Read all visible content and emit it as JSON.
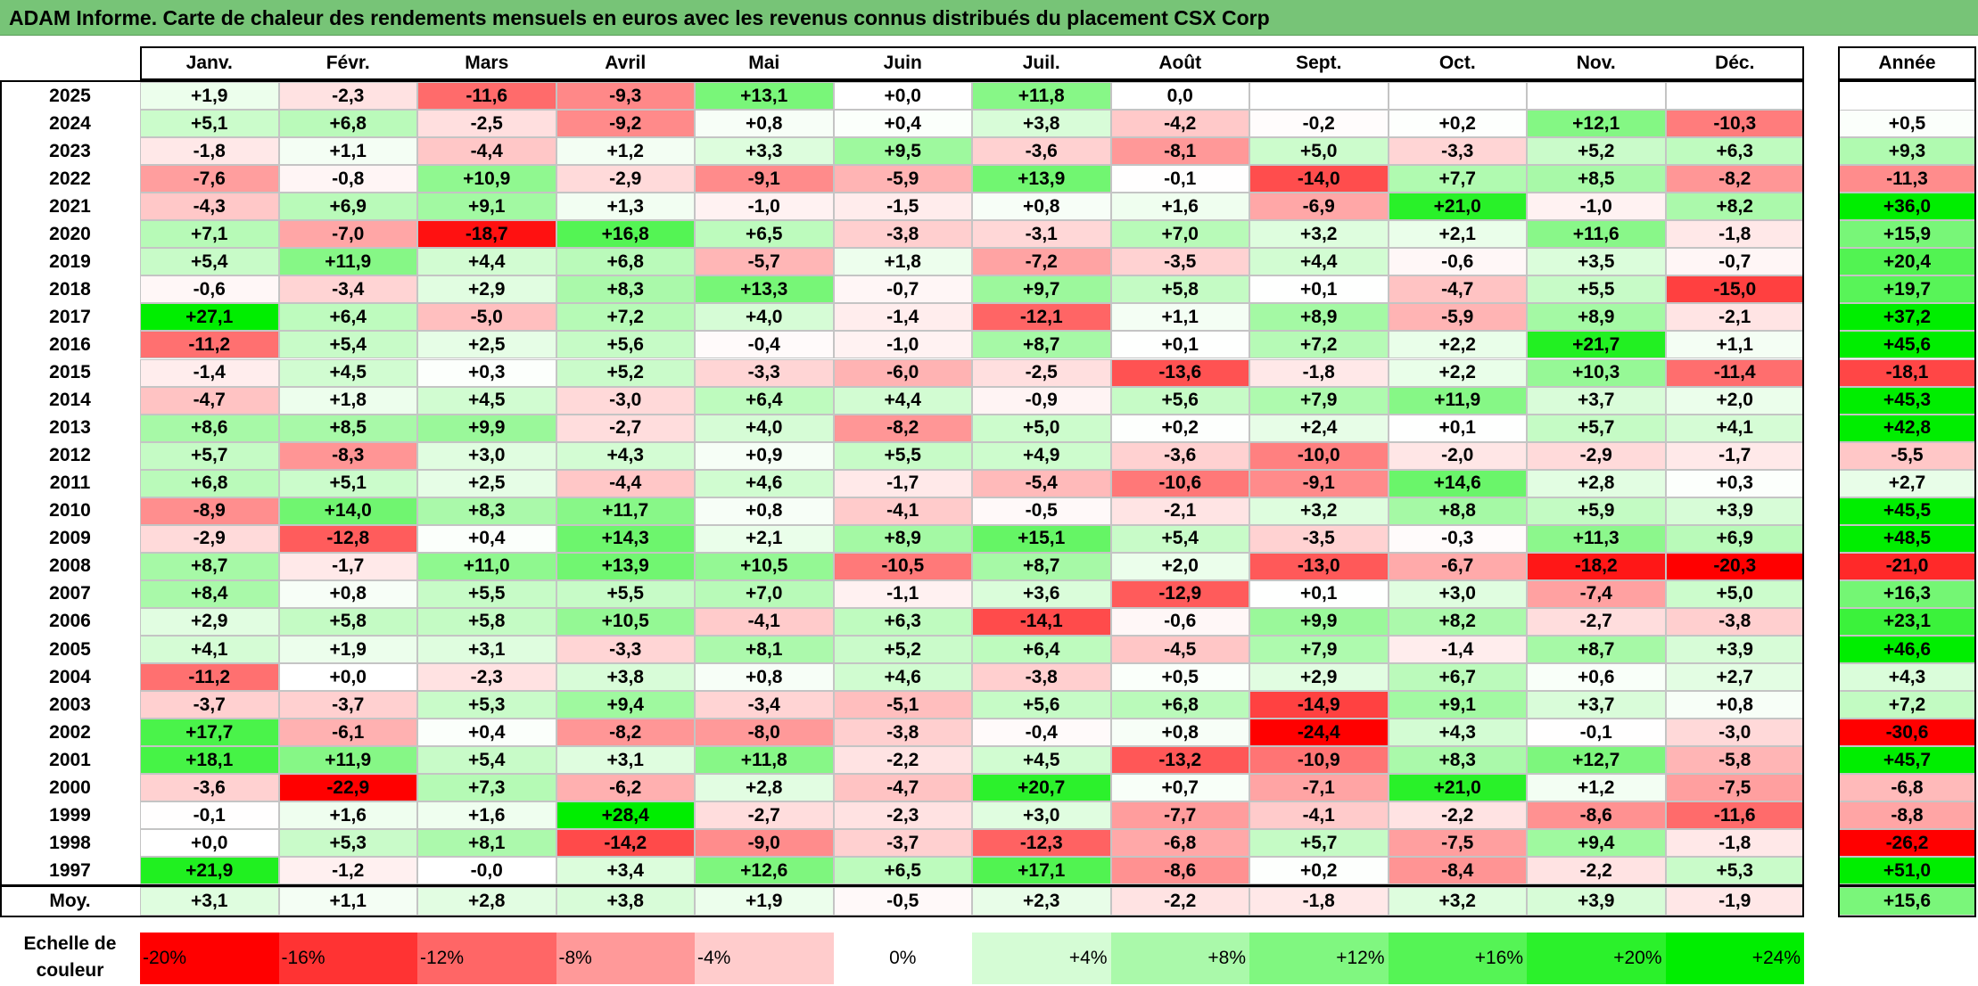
{
  "title": "ADAM Informe. Carte de chaleur des rendements mensuels en euros avec les revenus connus distribués du placement CSX Corp",
  "chart_data": {
    "type": "heatmap",
    "months": [
      "Janv.",
      "Févr.",
      "Mars",
      "Avril",
      "Mai",
      "Juin",
      "Juil.",
      "Août",
      "Sept.",
      "Oct.",
      "Nov.",
      "Déc."
    ],
    "year_col_header": "Année",
    "rows": [
      {
        "label": "2025",
        "values": [
          "+1,9",
          "-2,3",
          "-11,6",
          "-9,3",
          "+13,1",
          "+0,0",
          "+11,8",
          "0,0",
          "",
          "",
          "",
          ""
        ],
        "annual": ""
      },
      {
        "label": "2024",
        "values": [
          "+5,1",
          "+6,8",
          "-2,5",
          "-9,2",
          "+0,8",
          "+0,4",
          "+3,8",
          "-4,2",
          "-0,2",
          "+0,2",
          "+12,1",
          "-10,3"
        ],
        "annual": "+0,5"
      },
      {
        "label": "2023",
        "values": [
          "-1,8",
          "+1,1",
          "-4,4",
          "+1,2",
          "+3,3",
          "+9,5",
          "-3,6",
          "-8,1",
          "+5,0",
          "-3,3",
          "+5,2",
          "+6,3"
        ],
        "annual": "+9,3"
      },
      {
        "label": "2022",
        "values": [
          "-7,6",
          "-0,8",
          "+10,9",
          "-2,9",
          "-9,1",
          "-5,9",
          "+13,9",
          "-0,1",
          "-14,0",
          "+7,7",
          "+8,5",
          "-8,2"
        ],
        "annual": "-11,3"
      },
      {
        "label": "2021",
        "values": [
          "-4,3",
          "+6,9",
          "+9,1",
          "+1,3",
          "-1,0",
          "-1,5",
          "+0,8",
          "+1,6",
          "-6,9",
          "+21,0",
          "-1,0",
          "+8,2"
        ],
        "annual": "+36,0"
      },
      {
        "label": "2020",
        "values": [
          "+7,1",
          "-7,0",
          "-18,7",
          "+16,8",
          "+6,5",
          "-3,8",
          "-3,1",
          "+7,0",
          "+3,2",
          "+2,1",
          "+11,6",
          "-1,8"
        ],
        "annual": "+15,9"
      },
      {
        "label": "2019",
        "values": [
          "+5,4",
          "+11,9",
          "+4,4",
          "+6,8",
          "-5,7",
          "+1,8",
          "-7,2",
          "-3,5",
          "+4,4",
          "-0,6",
          "+3,5",
          "-0,7"
        ],
        "annual": "+20,4"
      },
      {
        "label": "2018",
        "values": [
          "-0,6",
          "-3,4",
          "+2,9",
          "+8,3",
          "+13,3",
          "-0,7",
          "+9,7",
          "+5,8",
          "+0,1",
          "-4,7",
          "+5,5",
          "-15,0"
        ],
        "annual": "+19,7"
      },
      {
        "label": "2017",
        "values": [
          "+27,1",
          "+6,4",
          "-5,0",
          "+7,2",
          "+4,0",
          "-1,4",
          "-12,1",
          "+1,1",
          "+8,9",
          "-5,9",
          "+8,9",
          "-2,1"
        ],
        "annual": "+37,2"
      },
      {
        "label": "2016",
        "values": [
          "-11,2",
          "+5,4",
          "+2,5",
          "+5,6",
          "-0,4",
          "-1,0",
          "+8,7",
          "+0,1",
          "+7,2",
          "+2,2",
          "+21,7",
          "+1,1"
        ],
        "annual": "+45,6"
      },
      {
        "label": "2015",
        "values": [
          "-1,4",
          "+4,5",
          "+0,3",
          "+5,2",
          "-3,3",
          "-6,0",
          "-2,5",
          "-13,6",
          "-1,8",
          "+2,2",
          "+10,3",
          "-11,4"
        ],
        "annual": "-18,1"
      },
      {
        "label": "2014",
        "values": [
          "-4,7",
          "+1,8",
          "+4,5",
          "-3,0",
          "+6,4",
          "+4,4",
          "-0,9",
          "+5,6",
          "+7,9",
          "+11,9",
          "+3,7",
          "+2,0"
        ],
        "annual": "+45,3"
      },
      {
        "label": "2013",
        "values": [
          "+8,6",
          "+8,5",
          "+9,9",
          "-2,7",
          "+4,0",
          "-8,2",
          "+5,0",
          "+0,2",
          "+2,4",
          "+0,1",
          "+5,7",
          "+4,1"
        ],
        "annual": "+42,8"
      },
      {
        "label": "2012",
        "values": [
          "+5,7",
          "-8,3",
          "+3,0",
          "+4,3",
          "+0,9",
          "+5,5",
          "+4,9",
          "-3,6",
          "-10,0",
          "-2,0",
          "-2,9",
          "-1,7"
        ],
        "annual": "-5,5"
      },
      {
        "label": "2011",
        "values": [
          "+6,8",
          "+5,1",
          "+2,5",
          "-4,4",
          "+4,6",
          "-1,7",
          "-5,4",
          "-10,6",
          "-9,1",
          "+14,6",
          "+2,8",
          "+0,3"
        ],
        "annual": "+2,7"
      },
      {
        "label": "2010",
        "values": [
          "-8,9",
          "+14,0",
          "+8,3",
          "+11,7",
          "+0,8",
          "-4,1",
          "-0,5",
          "-2,1",
          "+3,2",
          "+8,8",
          "+5,9",
          "+3,9"
        ],
        "annual": "+45,5"
      },
      {
        "label": "2009",
        "values": [
          "-2,9",
          "-12,8",
          "+0,4",
          "+14,3",
          "+2,1",
          "+8,9",
          "+15,1",
          "+5,4",
          "-3,5",
          "-0,3",
          "+11,3",
          "+6,9"
        ],
        "annual": "+48,5"
      },
      {
        "label": "2008",
        "values": [
          "+8,7",
          "-1,7",
          "+11,0",
          "+13,9",
          "+10,5",
          "-10,5",
          "+8,7",
          "+2,0",
          "-13,0",
          "-6,7",
          "-18,2",
          "-20,3"
        ],
        "annual": "-21,0"
      },
      {
        "label": "2007",
        "values": [
          "+8,4",
          "+0,8",
          "+5,5",
          "+5,5",
          "+7,0",
          "-1,1",
          "+3,6",
          "-12,9",
          "+0,1",
          "+3,0",
          "-7,4",
          "+5,0"
        ],
        "annual": "+16,3"
      },
      {
        "label": "2006",
        "values": [
          "+2,9",
          "+5,8",
          "+5,8",
          "+10,5",
          "-4,1",
          "+6,3",
          "-14,1",
          "-0,6",
          "+9,9",
          "+8,2",
          "-2,7",
          "-3,8"
        ],
        "annual": "+23,1"
      },
      {
        "label": "2005",
        "values": [
          "+4,1",
          "+1,9",
          "+3,1",
          "-3,3",
          "+8,1",
          "+5,2",
          "+6,4",
          "-4,5",
          "+7,9",
          "-1,4",
          "+8,7",
          "+3,9"
        ],
        "annual": "+46,6"
      },
      {
        "label": "2004",
        "values": [
          "-11,2",
          "+0,0",
          "-2,3",
          "+3,8",
          "+0,8",
          "+4,6",
          "-3,8",
          "+0,5",
          "+2,9",
          "+6,7",
          "+0,6",
          "+2,7"
        ],
        "annual": "+4,3"
      },
      {
        "label": "2003",
        "values": [
          "-3,7",
          "-3,7",
          "+5,3",
          "+9,4",
          "-3,4",
          "-5,1",
          "+5,6",
          "+6,8",
          "-14,9",
          "+9,1",
          "+3,7",
          "+0,8"
        ],
        "annual": "+7,2"
      },
      {
        "label": "2002",
        "values": [
          "+17,7",
          "-6,1",
          "+0,4",
          "-8,2",
          "-8,0",
          "-3,8",
          "-0,4",
          "+0,8",
          "-24,4",
          "+4,3",
          "-0,1",
          "-3,0"
        ],
        "annual": "-30,6"
      },
      {
        "label": "2001",
        "values": [
          "+18,1",
          "+11,9",
          "+5,4",
          "+3,1",
          "+11,8",
          "-2,2",
          "+4,5",
          "-13,2",
          "-10,9",
          "+8,3",
          "+12,7",
          "-5,8"
        ],
        "annual": "+45,7"
      },
      {
        "label": "2000",
        "values": [
          "-3,6",
          "-22,9",
          "+7,3",
          "-6,2",
          "+2,8",
          "-4,7",
          "+20,7",
          "+0,7",
          "-7,1",
          "+21,0",
          "+1,2",
          "-7,5"
        ],
        "annual": "-6,8"
      },
      {
        "label": "1999",
        "values": [
          "-0,1",
          "+1,6",
          "+1,6",
          "+28,4",
          "-2,7",
          "-2,3",
          "+3,0",
          "-7,7",
          "-4,1",
          "-2,2",
          "-8,6",
          "-11,6"
        ],
        "annual": "-8,8"
      },
      {
        "label": "1998",
        "values": [
          "+0,0",
          "+5,3",
          "+8,1",
          "-14,2",
          "-9,0",
          "-3,7",
          "-12,3",
          "-6,8",
          "+5,7",
          "-7,5",
          "+9,4",
          "-1,8"
        ],
        "annual": "-26,2"
      },
      {
        "label": "1997",
        "values": [
          "+21,9",
          "-1,2",
          "-0,0",
          "+3,4",
          "+12,6",
          "+6,5",
          "+17,1",
          "-8,6",
          "+0,2",
          "-8,4",
          "-2,2",
          "+5,3"
        ],
        "annual": "+51,0"
      }
    ],
    "average": {
      "label": "Moy.",
      "values": [
        "+3,1",
        "+1,1",
        "+2,8",
        "+3,8",
        "+1,9",
        "-0,5",
        "+2,3",
        "-2,2",
        "-1,8",
        "+3,2",
        "+3,9",
        "-1,9"
      ],
      "annual": "+15,6"
    },
    "color_scale": {
      "label": "Echelle de couleur",
      "steps": [
        {
          "text": "-20%",
          "value": -20
        },
        {
          "text": "-16%",
          "value": -16
        },
        {
          "text": "-12%",
          "value": -12
        },
        {
          "text": "-8%",
          "value": -8
        },
        {
          "text": "-4%",
          "value": -4
        },
        {
          "text": "0%",
          "value": 0
        },
        {
          "text": "+4%",
          "value": 4
        },
        {
          "text": "+8%",
          "value": 8
        },
        {
          "text": "+12%",
          "value": 12
        },
        {
          "text": "+16%",
          "value": 16
        },
        {
          "text": "+20%",
          "value": 20
        },
        {
          "text": "+24%",
          "value": 24
        }
      ],
      "negative_color": "#ff0000",
      "neutral_color": "#ffffff",
      "positive_color": "#00ee00"
    }
  }
}
